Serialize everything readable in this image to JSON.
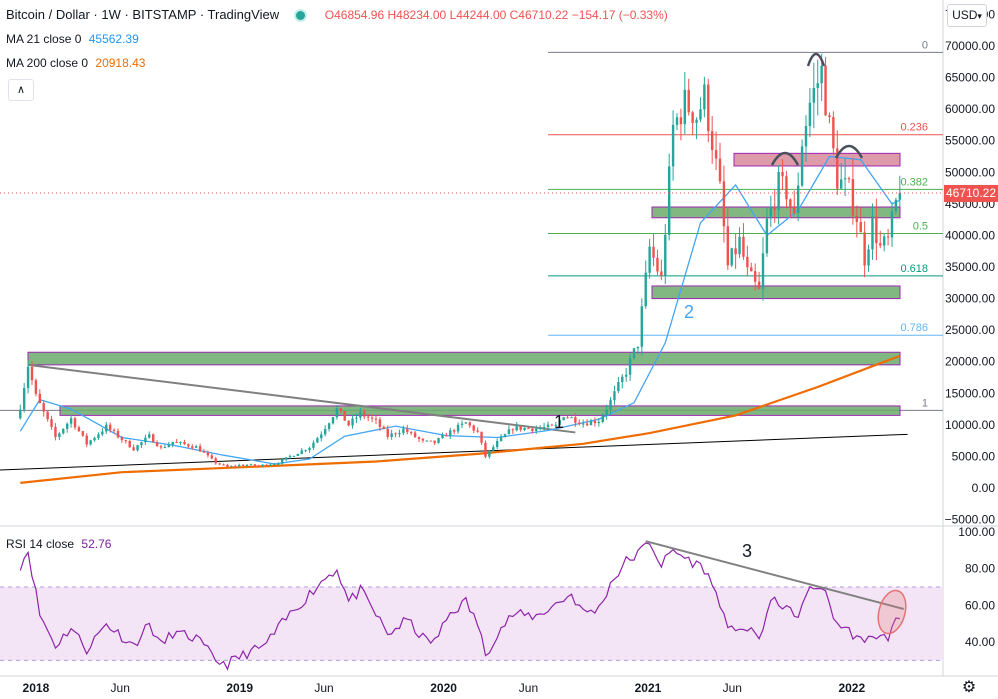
{
  "header": {
    "symbol": "Bitcoin / Dollar · 1W · BITSTAMP · TradingView",
    "open": "O46854.96",
    "high": "H48234.00",
    "low": "L44244.00",
    "close": "C46710.22",
    "change": "−154.17 (−0.33%)"
  },
  "indicators": {
    "ma21_label": "MA 21 close 0",
    "ma21_value": "45562.39",
    "ma200_label": "MA 200 close 0",
    "ma200_value": "20918.43",
    "rsi_label": "RSI 14 close",
    "rsi_value": "52.76"
  },
  "controls": {
    "currency": "USD",
    "collapse_icon": "chevron-up-icon",
    "settings_icon": "gear-icon",
    "current_price": "46710.22"
  },
  "colors": {
    "up": "#26a69a",
    "down": "#ef5350",
    "ma21": "#42a5f5",
    "ma200": "#ef6c00",
    "rsi": "#8e24aa",
    "rsi_band": "#f3e5f5",
    "zone_fill": "#6bab6b",
    "zone_fill_red": "#d27a8c",
    "zone_border": "#9c27b0",
    "trendline": "#808080"
  },
  "chart_data": [
    {
      "type": "candlestick",
      "interval": "1W",
      "x_ticks": [
        "2018",
        "Jun",
        "2019",
        "Jun",
        "2020",
        "Jun",
        "2021",
        "Jun",
        "2022"
      ],
      "y_ticks": [
        "75000.00",
        "70000.00",
        "65000.00",
        "60000.00",
        "55000.00",
        "50000.00",
        "45000.00",
        "40000.00",
        "35000.00",
        "30000.00",
        "25000.00",
        "20000.00",
        "15000.00",
        "10000.00",
        "5000.00",
        "0.00",
        "−5000.00"
      ],
      "ylim": [
        -5000,
        75000
      ],
      "price_path": [
        [
          "2017-12-04",
          13000
        ],
        [
          "2017-12-18",
          19500
        ],
        [
          "2018-01-01",
          14500
        ],
        [
          "2018-02-05",
          8000
        ],
        [
          "2018-03-05",
          11000
        ],
        [
          "2018-04-02",
          7000
        ],
        [
          "2018-05-07",
          9700
        ],
        [
          "2018-06-25",
          6200
        ],
        [
          "2018-07-23",
          8200
        ],
        [
          "2018-08-13",
          6300
        ],
        [
          "2018-09-03",
          7300
        ],
        [
          "2018-10-15",
          6500
        ],
        [
          "2018-11-19",
          4000
        ],
        [
          "2018-12-10",
          3300
        ],
        [
          "2019-01-07",
          3700
        ],
        [
          "2019-02-04",
          3500
        ],
        [
          "2019-03-11",
          4000
        ],
        [
          "2019-04-01",
          5000
        ],
        [
          "2019-05-06",
          6500
        ],
        [
          "2019-05-27",
          8700
        ],
        [
          "2019-06-24",
          12500
        ],
        [
          "2019-07-15",
          10000
        ],
        [
          "2019-08-05",
          11800
        ],
        [
          "2019-09-02",
          10500
        ],
        [
          "2019-09-23",
          8200
        ],
        [
          "2019-10-21",
          9300
        ],
        [
          "2019-11-25",
          7300
        ],
        [
          "2019-12-16",
          7200
        ],
        [
          "2020-01-13",
          8900
        ],
        [
          "2020-02-10",
          10300
        ],
        [
          "2020-03-02",
          8800
        ],
        [
          "2020-03-16",
          5000
        ],
        [
          "2020-04-06",
          7200
        ],
        [
          "2020-05-04",
          9500
        ],
        [
          "2020-06-15",
          9400
        ],
        [
          "2020-07-20",
          9800
        ],
        [
          "2020-08-03",
          11600
        ],
        [
          "2020-09-07",
          10300
        ],
        [
          "2020-10-05",
          10700
        ],
        [
          "2020-10-26",
          13700
        ],
        [
          "2020-11-23",
          18500
        ],
        [
          "2020-12-14",
          23000
        ],
        [
          "2021-01-04",
          38000
        ],
        [
          "2021-01-25",
          33000
        ],
        [
          "2021-02-15",
          57000
        ],
        [
          "2021-03-08",
          61000
        ],
        [
          "2021-03-29",
          59000
        ],
        [
          "2021-04-12",
          62000
        ],
        [
          "2021-04-26",
          55000
        ],
        [
          "2021-05-10",
          47000
        ],
        [
          "2021-05-24",
          35000
        ],
        [
          "2021-06-14",
          39000
        ],
        [
          "2021-06-28",
          34000
        ],
        [
          "2021-07-19",
          31000
        ],
        [
          "2021-08-02",
          42000
        ],
        [
          "2021-08-23",
          48000
        ],
        [
          "2021-09-06",
          47000
        ],
        [
          "2021-09-20",
          42500
        ],
        [
          "2021-10-04",
          55000
        ],
        [
          "2021-10-18",
          61000
        ],
        [
          "2021-11-08",
          66000
        ],
        [
          "2021-11-22",
          57000
        ],
        [
          "2021-12-06",
          49000
        ],
        [
          "2021-12-27",
          47000
        ],
        [
          "2022-01-10",
          43000
        ],
        [
          "2022-01-24",
          36500
        ],
        [
          "2022-02-07",
          42000
        ],
        [
          "2022-02-21",
          38000
        ],
        [
          "2022-03-07",
          39000
        ],
        [
          "2022-03-21",
          45000
        ],
        [
          "2022-03-28",
          46710
        ]
      ],
      "series": [
        {
          "name": "MA 21 close 0",
          "last": 45562.39,
          "values": [
            [
              "2017-12-04",
              9000
            ],
            [
              "2018-01-08",
              14000
            ],
            [
              "2018-03-05",
              12500
            ],
            [
              "2018-06-04",
              8000
            ],
            [
              "2018-09-03",
              6800
            ],
            [
              "2018-12-03",
              5200
            ],
            [
              "2019-03-04",
              3800
            ],
            [
              "2019-05-06",
              4600
            ],
            [
              "2019-07-08",
              8200
            ],
            [
              "2019-10-07",
              9800
            ],
            [
              "2020-01-06",
              8300
            ],
            [
              "2020-04-06",
              8000
            ],
            [
              "2020-07-06",
              9100
            ],
            [
              "2020-10-05",
              10900
            ],
            [
              "2020-12-07",
              13500
            ],
            [
              "2021-02-01",
              23000
            ],
            [
              "2021-04-05",
              42000
            ],
            [
              "2021-06-07",
              48000
            ],
            [
              "2021-08-02",
              40000
            ],
            [
              "2021-09-27",
              44000
            ],
            [
              "2021-11-22",
              52500
            ],
            [
              "2022-01-17",
              52000
            ],
            [
              "2022-03-14",
              45000
            ],
            [
              "2022-03-28",
              45562
            ]
          ]
        },
        {
          "name": "MA 200 close 0",
          "last": 20918.43,
          "values": [
            [
              "2017-12-04",
              800
            ],
            [
              "2018-06-04",
              2500
            ],
            [
              "2019-01-07",
              3300
            ],
            [
              "2019-09-02",
              4200
            ],
            [
              "2020-03-02",
              5400
            ],
            [
              "2020-09-07",
              7000
            ],
            [
              "2021-01-04",
              8700
            ],
            [
              "2021-06-07",
              11500
            ],
            [
              "2021-11-01",
              16000
            ],
            [
              "2022-03-28",
              20918
            ]
          ]
        }
      ],
      "levels": {
        "fib_labels": [
          "0",
          "0.236",
          "0.382",
          "0.5",
          "0.618",
          "0.786",
          "1"
        ],
        "fib_values": [
          69000,
          55950,
          47300,
          40300,
          33600,
          24200,
          12300
        ]
      },
      "zones": [
        [
          42800,
          44500
        ],
        [
          30000,
          32000
        ],
        [
          19500,
          21500
        ],
        [
          11500,
          13000
        ],
        [
          51000,
          53000
        ]
      ],
      "trendlines": [
        {
          "from": [
            "2017-12-18",
            19500
          ],
          "to": [
            "2020-08-24",
            8800
          ]
        },
        {
          "from": [
            "2017-01-02",
            1800
          ],
          "to": [
            "2022-04-11",
            8500
          ]
        }
      ],
      "annotations": [
        "1",
        "2"
      ]
    },
    {
      "type": "line",
      "title": "RSI 14 close",
      "ylim": [
        25,
        100
      ],
      "y_ticks": [
        "100.00",
        "80.00",
        "60.00",
        "40.00"
      ],
      "band": [
        30,
        70
      ],
      "values": [
        [
          "2017-12-04",
          82
        ],
        [
          "2017-12-18",
          90
        ],
        [
          "2018-01-08",
          55
        ],
        [
          "2018-02-05",
          38
        ],
        [
          "2018-03-05",
          48
        ],
        [
          "2018-04-02",
          36
        ],
        [
          "2018-05-07",
          50
        ],
        [
          "2018-06-25",
          38
        ],
        [
          "2018-07-23",
          50
        ],
        [
          "2018-08-13",
          38
        ],
        [
          "2018-09-03",
          45
        ],
        [
          "2018-10-15",
          42
        ],
        [
          "2018-11-19",
          30
        ],
        [
          "2018-12-10",
          28
        ],
        [
          "2019-01-14",
          34
        ],
        [
          "2019-02-11",
          37
        ],
        [
          "2019-04-01",
          55
        ],
        [
          "2019-06-03",
          75
        ],
        [
          "2019-06-24",
          80
        ],
        [
          "2019-07-15",
          62
        ],
        [
          "2019-08-05",
          68
        ],
        [
          "2019-09-02",
          55
        ],
        [
          "2019-09-23",
          44
        ],
        [
          "2019-10-28",
          52
        ],
        [
          "2019-11-25",
          42
        ],
        [
          "2019-12-16",
          40
        ],
        [
          "2020-01-13",
          56
        ],
        [
          "2020-02-10",
          62
        ],
        [
          "2020-03-02",
          50
        ],
        [
          "2020-03-16",
          33
        ],
        [
          "2020-04-06",
          45
        ],
        [
          "2020-05-04",
          55
        ],
        [
          "2020-06-15",
          54
        ],
        [
          "2020-07-27",
          62
        ],
        [
          "2020-08-17",
          66
        ],
        [
          "2020-09-07",
          56
        ],
        [
          "2020-10-05",
          58
        ],
        [
          "2020-10-26",
          72
        ],
        [
          "2020-11-23",
          84
        ],
        [
          "2020-12-14",
          88
        ],
        [
          "2021-01-04",
          95
        ],
        [
          "2021-01-25",
          82
        ],
        [
          "2021-02-15",
          90
        ],
        [
          "2021-03-08",
          86
        ],
        [
          "2021-04-12",
          80
        ],
        [
          "2021-05-10",
          62
        ],
        [
          "2021-05-24",
          45
        ],
        [
          "2021-06-14",
          49
        ],
        [
          "2021-07-19",
          42
        ],
        [
          "2021-08-09",
          62
        ],
        [
          "2021-09-06",
          60
        ],
        [
          "2021-09-20",
          52
        ],
        [
          "2021-10-18",
          68
        ],
        [
          "2021-11-08",
          71
        ],
        [
          "2021-11-22",
          60
        ],
        [
          "2021-12-06",
          50
        ],
        [
          "2022-01-10",
          43
        ],
        [
          "2022-01-24",
          38
        ],
        [
          "2022-02-07",
          45
        ],
        [
          "2022-02-21",
          42
        ],
        [
          "2022-03-07",
          43
        ],
        [
          "2022-03-21",
          51
        ],
        [
          "2022-03-28",
          52.76
        ]
      ],
      "trendline": {
        "from": [
          "2020-12-28",
          95
        ],
        "to": [
          "2022-04-04",
          58
        ]
      },
      "annotations": [
        "3"
      ]
    }
  ]
}
